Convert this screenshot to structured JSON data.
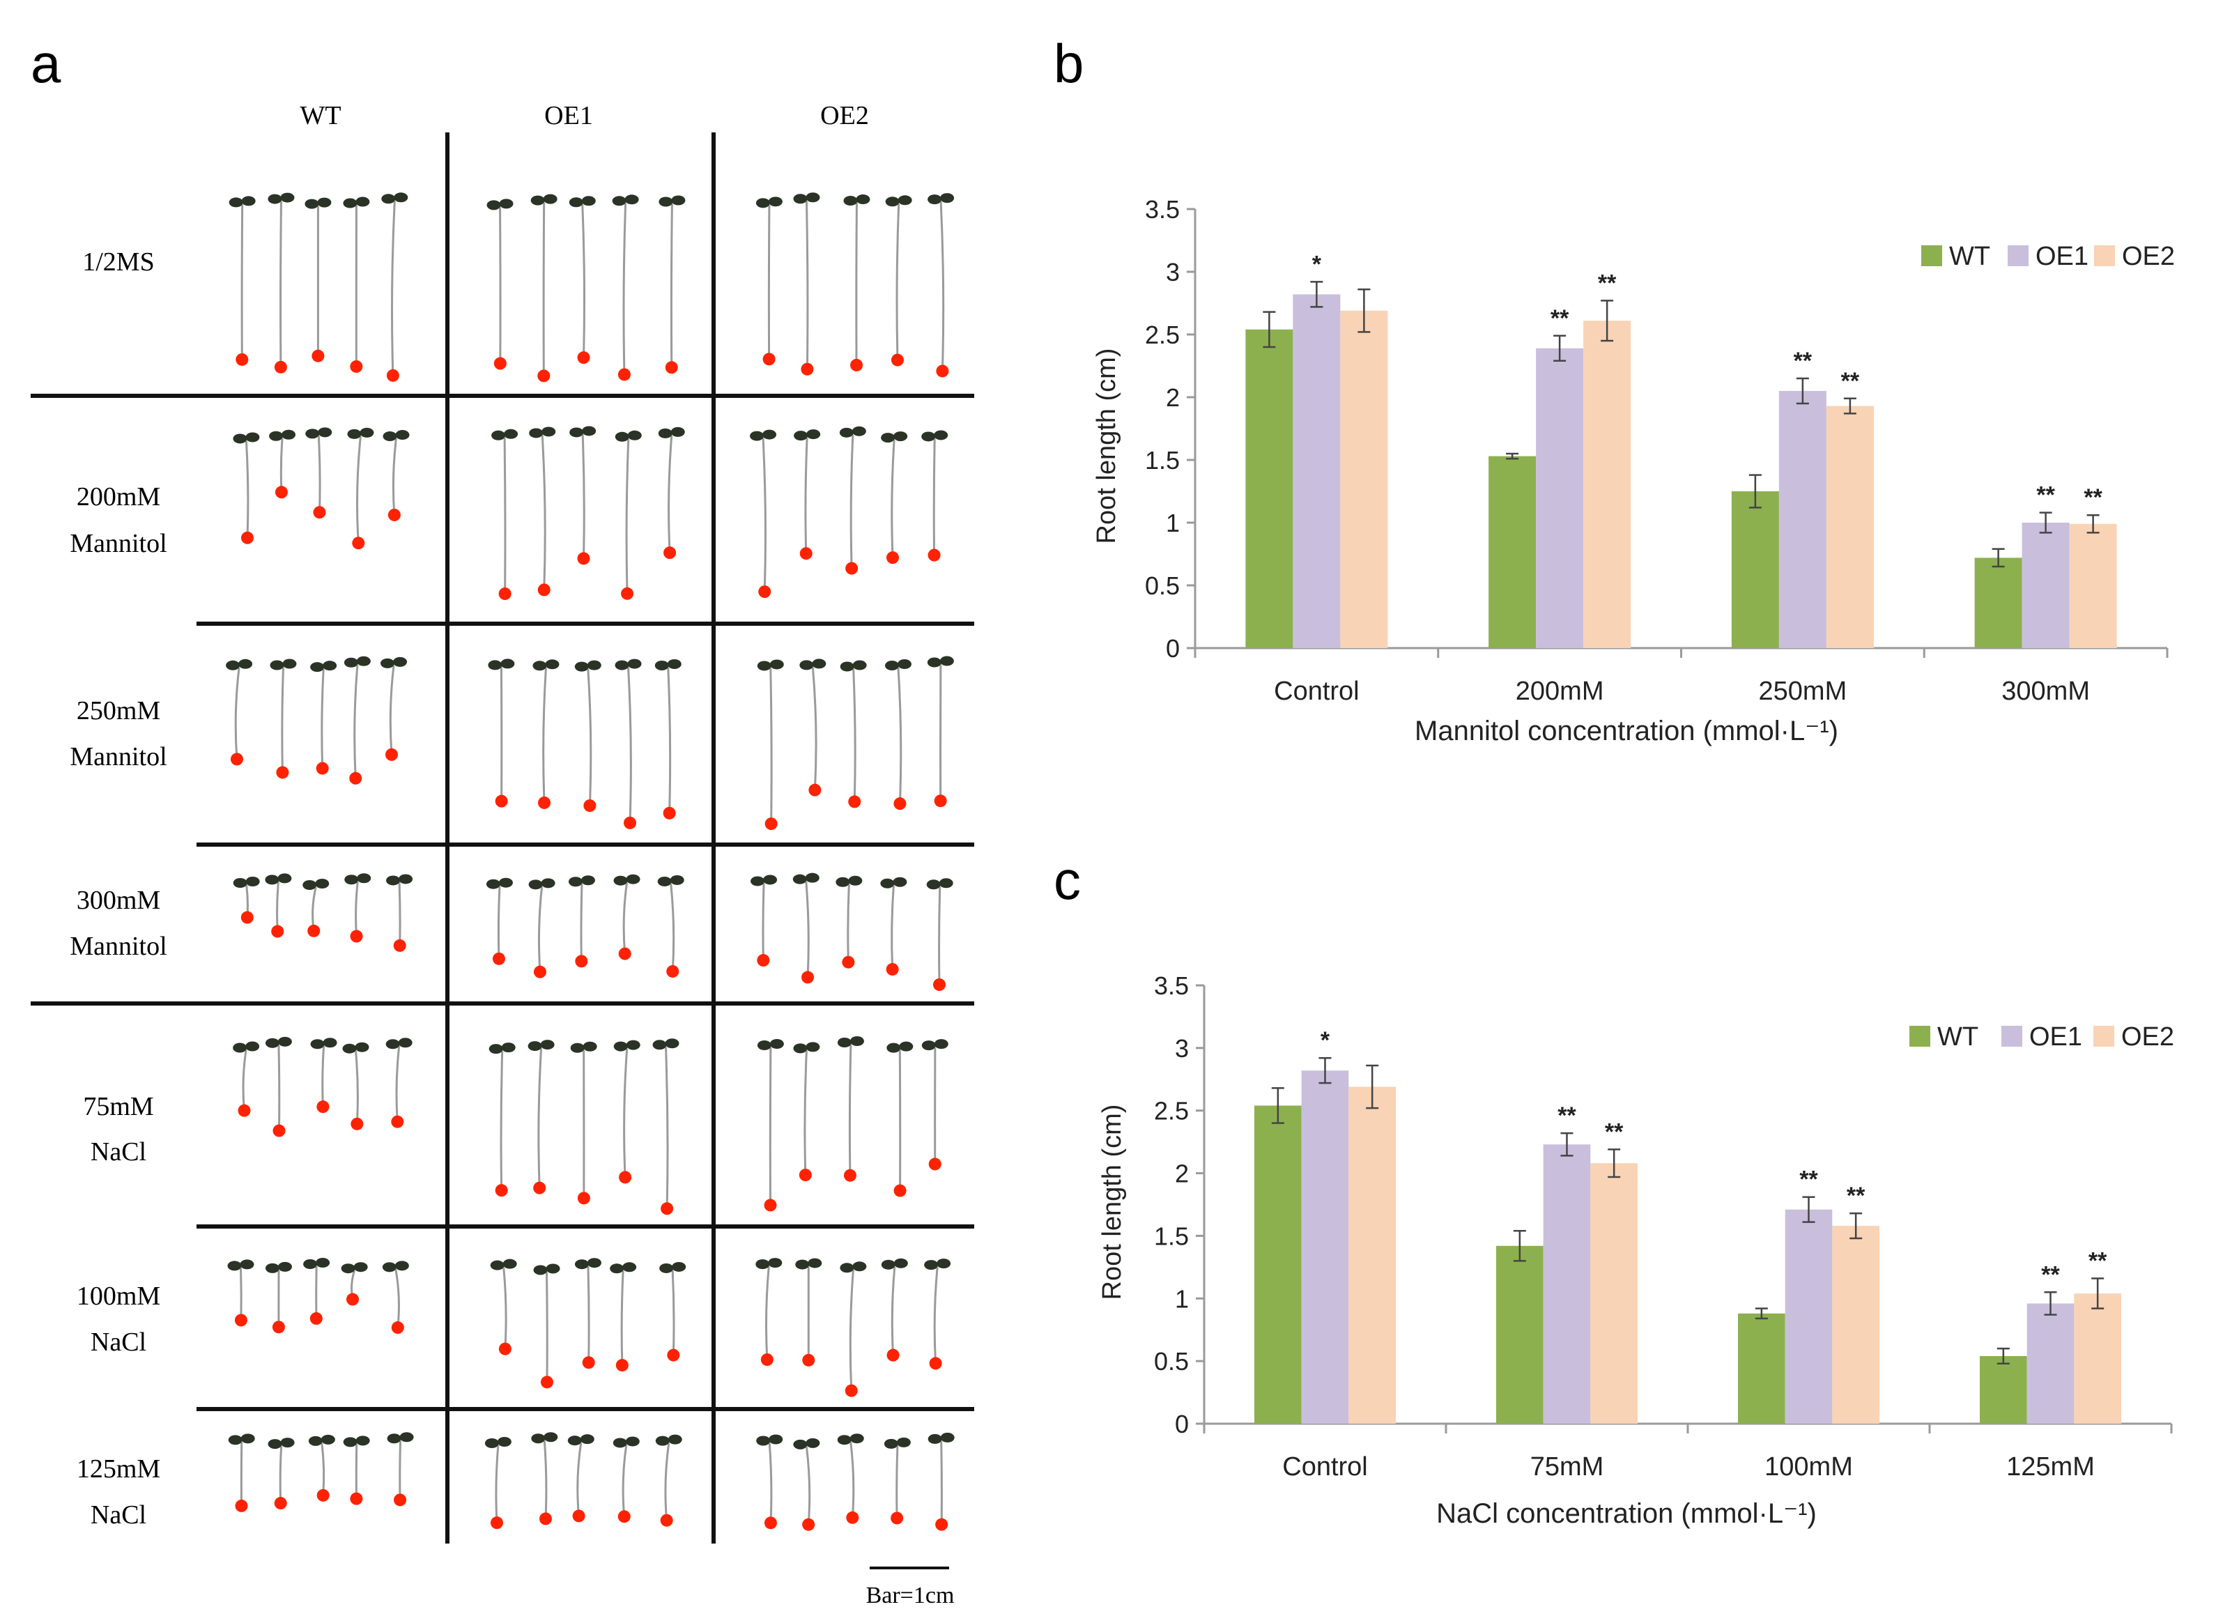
{
  "figure": {
    "panel_a": {
      "label": "a",
      "columns": [
        "WT",
        "OE1",
        "OE2"
      ],
      "rows": [
        {
          "line1": "1/2MS",
          "line2": ""
        },
        {
          "line1": "200mM",
          "line2": "Mannitol"
        },
        {
          "line1": "250mM",
          "line2": "Mannitol"
        },
        {
          "line1": "300mM",
          "line2": "Mannitol"
        },
        {
          "line1": "75mM",
          "line2": "NaCl"
        },
        {
          "line1": "100mM",
          "line2": "NaCl"
        },
        {
          "line1": "125mM",
          "line2": "NaCl"
        }
      ],
      "scale_bar_label": "Bar=1cm",
      "marker_color": "#ff2200",
      "seedling_color": "#9a9a9a",
      "leaf_color": "#2a3326"
    },
    "colors": {
      "WT": "#8db04f",
      "OE1": "#c9bfdc",
      "OE2": "#f9d3b5"
    }
  },
  "chart_data": [
    {
      "panel": "b",
      "type": "bar",
      "title": "",
      "categories": [
        "Control",
        "200mM",
        "250mM",
        "300mM"
      ],
      "series": [
        {
          "name": "WT",
          "values": [
            2.54,
            1.53,
            1.25,
            0.72
          ],
          "errors": [
            0.14,
            0.02,
            0.13,
            0.07
          ],
          "sig": [
            "",
            "",
            "",
            ""
          ]
        },
        {
          "name": "OE1",
          "values": [
            2.82,
            2.39,
            2.05,
            1.0
          ],
          "errors": [
            0.1,
            0.1,
            0.1,
            0.08
          ],
          "sig": [
            "*",
            "**",
            "**",
            "**"
          ]
        },
        {
          "name": "OE2",
          "values": [
            2.69,
            2.61,
            1.93,
            0.99
          ],
          "errors": [
            0.17,
            0.16,
            0.06,
            0.07
          ],
          "sig": [
            "",
            "**",
            "**",
            "**"
          ]
        }
      ],
      "xlabel": "Mannitol concentration (mmol·L⁻¹)",
      "ylabel": "Root length (cm)",
      "ylim": [
        0,
        3.5
      ],
      "yticks": [
        "0",
        "0.5",
        "1",
        "1.5",
        "2",
        "2.5",
        "3",
        "3.5"
      ],
      "legend": "top-right",
      "grid": false
    },
    {
      "panel": "c",
      "type": "bar",
      "title": "",
      "categories": [
        "Control",
        "75mM",
        "100mM",
        "125mM"
      ],
      "series": [
        {
          "name": "WT",
          "values": [
            2.54,
            1.42,
            0.88,
            0.54
          ],
          "errors": [
            0.14,
            0.12,
            0.04,
            0.06
          ],
          "sig": [
            "",
            "",
            "",
            ""
          ]
        },
        {
          "name": "OE1",
          "values": [
            2.82,
            2.23,
            1.71,
            0.96
          ],
          "errors": [
            0.1,
            0.09,
            0.1,
            0.09
          ],
          "sig": [
            "*",
            "**",
            "**",
            "**"
          ]
        },
        {
          "name": "OE2",
          "values": [
            2.69,
            2.08,
            1.58,
            1.04
          ],
          "errors": [
            0.17,
            0.11,
            0.1,
            0.12
          ],
          "sig": [
            "",
            "**",
            "**",
            "**"
          ]
        }
      ],
      "xlabel": "NaCl concentration (mmol·L⁻¹)",
      "ylabel": "Root length (cm)",
      "ylim": [
        0,
        3.5
      ],
      "yticks": [
        "0",
        "0.5",
        "1",
        "1.5",
        "2",
        "2.5",
        "3",
        "3.5"
      ],
      "legend": "top-right",
      "grid": false
    }
  ]
}
